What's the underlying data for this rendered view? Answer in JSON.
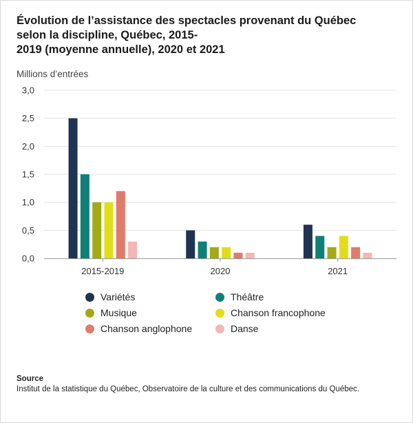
{
  "title_lines": [
    "Évolution de l’assistance des spectacles provenant du Québec",
    "selon la discipline, Québec, 2015-",
    "2019 (moyenne annuelle), 2020 et 2021"
  ],
  "source": {
    "label": "Source",
    "text": "Institut de la statistique du Québec, Observatoire de la culture et des communications du Québec."
  },
  "chart_data": {
    "type": "bar",
    "title": "Évolution de l’assistance des spectacles provenant du Québec selon la discipline, Québec, 2015-2019 (moyenne annuelle), 2020 et 2021",
    "xlabel": "",
    "ylabel": "Millions d’entrées",
    "ylim": [
      0,
      3.0
    ],
    "yticks": [
      "0,0",
      "0,5",
      "1,0",
      "1,5",
      "2,0",
      "2,5",
      "3,0"
    ],
    "grid": true,
    "legend_position": "bottom",
    "categories": [
      "2015-2019",
      "2020",
      "2021"
    ],
    "series": [
      {
        "name": "Variétés",
        "color": "#1f3352",
        "values": [
          2.5,
          0.5,
          0.6
        ]
      },
      {
        "name": "Théâtre",
        "color": "#0f7f78",
        "values": [
          1.5,
          0.3,
          0.4
        ]
      },
      {
        "name": "Musique",
        "color": "#a3aa16",
        "values": [
          1.0,
          0.2,
          0.2
        ]
      },
      {
        "name": "Chanson francophone",
        "color": "#e2dd1b",
        "values": [
          1.0,
          0.2,
          0.4
        ]
      },
      {
        "name": "Chanson anglophone",
        "color": "#e07b6c",
        "values": [
          1.2,
          0.1,
          0.2
        ]
      },
      {
        "name": "Danse",
        "color": "#f4b6b4",
        "values": [
          0.3,
          0.1,
          0.1
        ]
      }
    ]
  }
}
